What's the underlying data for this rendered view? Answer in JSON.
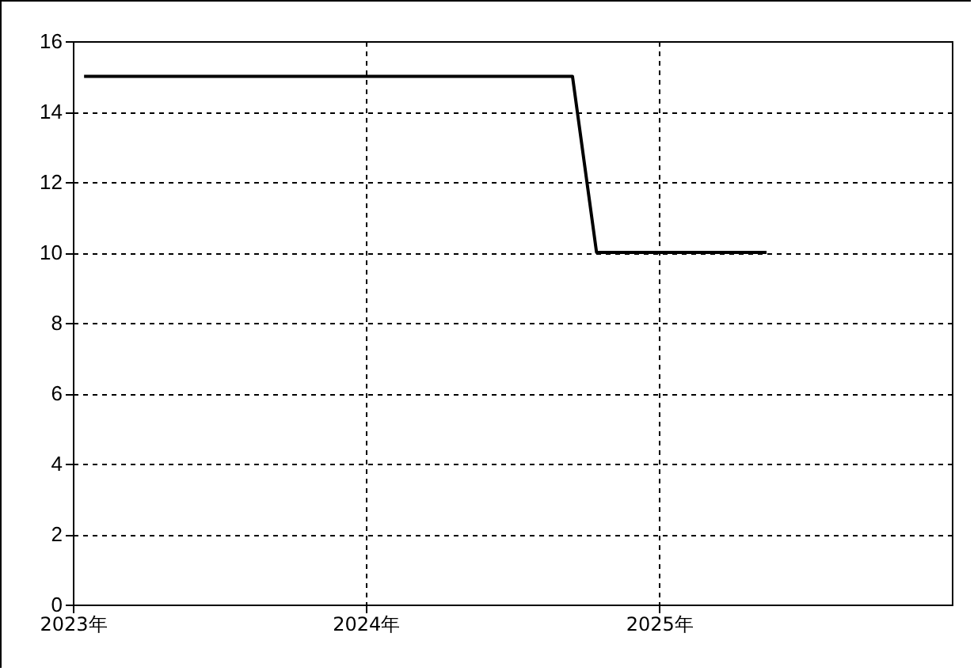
{
  "chart_data": {
    "type": "line",
    "x": [
      "2023-01-15",
      "2024-09-15",
      "2024-10-15",
      "2025-05-15"
    ],
    "series": [
      {
        "color": "#000000",
        "values": [
          15,
          15,
          10,
          10
        ]
      }
    ],
    "xlim": [
      "2023-01-01",
      "2026-01-01"
    ],
    "xticks": [
      {
        "value": "2023-01-01",
        "label": "2023年"
      },
      {
        "value": "2024-01-01",
        "label": "2024年"
      },
      {
        "value": "2025-01-01",
        "label": "2025年"
      }
    ],
    "ylim": [
      0,
      16
    ],
    "yticks": [
      0,
      2,
      4,
      6,
      8,
      10,
      12,
      14,
      16
    ],
    "grid": true,
    "marker": "none",
    "line_style": "solid"
  }
}
